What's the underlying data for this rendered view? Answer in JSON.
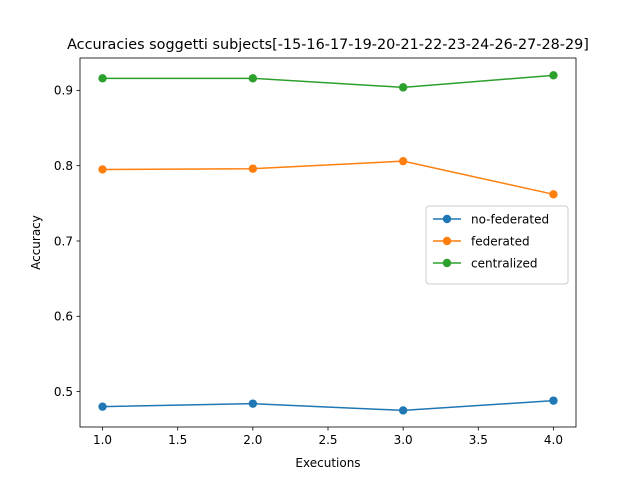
{
  "chart_data": {
    "type": "line",
    "title": "Accuracies soggetti subjects[-15-16-17-19-20-21-22-23-24-26-27-28-29]",
    "xlabel": "Executions",
    "ylabel": "Accuracy",
    "xlim": [
      0.85,
      4.15
    ],
    "ylim": [
      0.453,
      0.943
    ],
    "xticks": [
      1.0,
      1.5,
      2.0,
      2.5,
      3.0,
      3.5,
      4.0
    ],
    "xtick_labels": [
      "1.0",
      "1.5",
      "2.0",
      "2.5",
      "3.0",
      "3.5",
      "4.0"
    ],
    "yticks": [
      0.5,
      0.6,
      0.7,
      0.8,
      0.9
    ],
    "ytick_labels": [
      "0.5",
      "0.6",
      "0.7",
      "0.8",
      "0.9"
    ],
    "grid": false,
    "legend_position": "center-right",
    "x": [
      1,
      2,
      3,
      4
    ],
    "series": [
      {
        "name": "no-federated",
        "color": "#1f77b4",
        "values": [
          0.48,
          0.484,
          0.475,
          0.488
        ]
      },
      {
        "name": "federated",
        "color": "#ff7f0e",
        "values": [
          0.795,
          0.796,
          0.806,
          0.762
        ]
      },
      {
        "name": "centralized",
        "color": "#2ca02c",
        "values": [
          0.916,
          0.916,
          0.904,
          0.92
        ]
      }
    ]
  }
}
